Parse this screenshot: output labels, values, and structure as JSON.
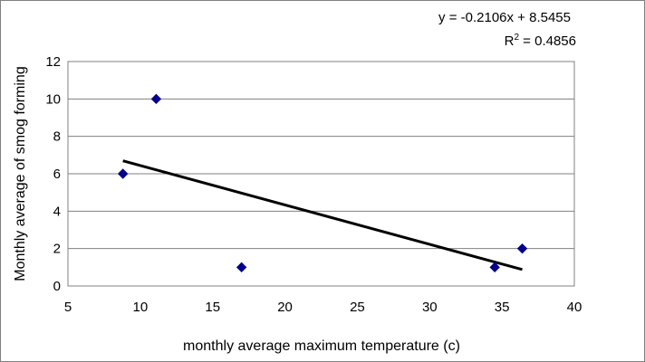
{
  "chart_data": {
    "type": "scatter",
    "title": "",
    "xlabel": "monthly average maximum temperature (c)",
    "ylabel": "Monthly average of smog forming",
    "xlim": [
      5,
      40
    ],
    "ylim": [
      0,
      12
    ],
    "xticks": [
      5,
      10,
      15,
      20,
      25,
      30,
      35,
      40
    ],
    "yticks": [
      0,
      2,
      4,
      6,
      8,
      10,
      12
    ],
    "grid": "horizontal",
    "legend": "none",
    "series": [
      {
        "marker": "diamond",
        "color": "#00008B",
        "points": [
          {
            "x": 8.8,
            "y": 6
          },
          {
            "x": 11.1,
            "y": 10
          },
          {
            "x": 17.0,
            "y": 1
          },
          {
            "x": 34.5,
            "y": 1
          },
          {
            "x": 36.4,
            "y": 2
          }
        ]
      }
    ],
    "trendline": {
      "type": "linear",
      "slope": -0.2106,
      "intercept": 8.5455,
      "x_range": [
        8.8,
        36.4
      ],
      "color": "#000000",
      "equation": "y = -0.2106x + 8.5455",
      "r2_prefix": "R",
      "r2_sup": "2",
      "r2_value": " = 0.4856"
    },
    "plot_area_color": "#ffffff",
    "grid_color": "#808080"
  }
}
